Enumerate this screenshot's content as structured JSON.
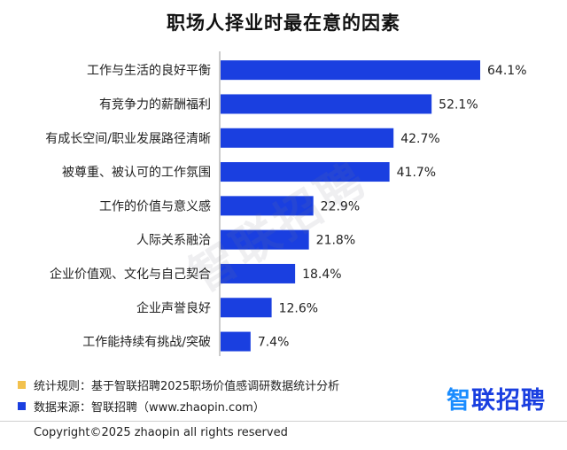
{
  "chart_data": {
    "type": "bar",
    "orientation": "horizontal",
    "title": "职场人择业时最在意的因素",
    "categories": [
      "工作与生活的良好平衡",
      "有竞争力的薪酬福利",
      "有成长空间/职业发展路径清晰",
      "被尊重、被认可的工作氛围",
      "工作的价值与意义感",
      "人际关系融洽",
      "企业价值观、文化与自己契合",
      "企业声誉良好",
      "工作能持续有挑战/突破"
    ],
    "values": [
      64.1,
      52.1,
      42.7,
      41.7,
      22.9,
      21.8,
      18.4,
      12.6,
      7.4
    ],
    "value_labels": [
      "64.1%",
      "52.1%",
      "42.7%",
      "41.7%",
      "22.9%",
      "21.8%",
      "18.4%",
      "12.6%",
      "7.4%"
    ],
    "xlim": [
      0,
      70
    ],
    "grid": false,
    "bar_color": "#1a3fe0"
  },
  "watermark": "智联招聘",
  "notes": [
    {
      "text": "统计规则：基于智联招聘2025职场价值感调研数据统计分析",
      "color": "#f2c14e"
    },
    {
      "text": "数据来源：智联招聘（www.zhaopin.com）",
      "color": "#1a3fe0"
    }
  ],
  "brand": {
    "part1": "智",
    "part2": "联招聘"
  },
  "footer": {
    "copyright": "Copyright©2025 zhaopin all rights reserved"
  }
}
